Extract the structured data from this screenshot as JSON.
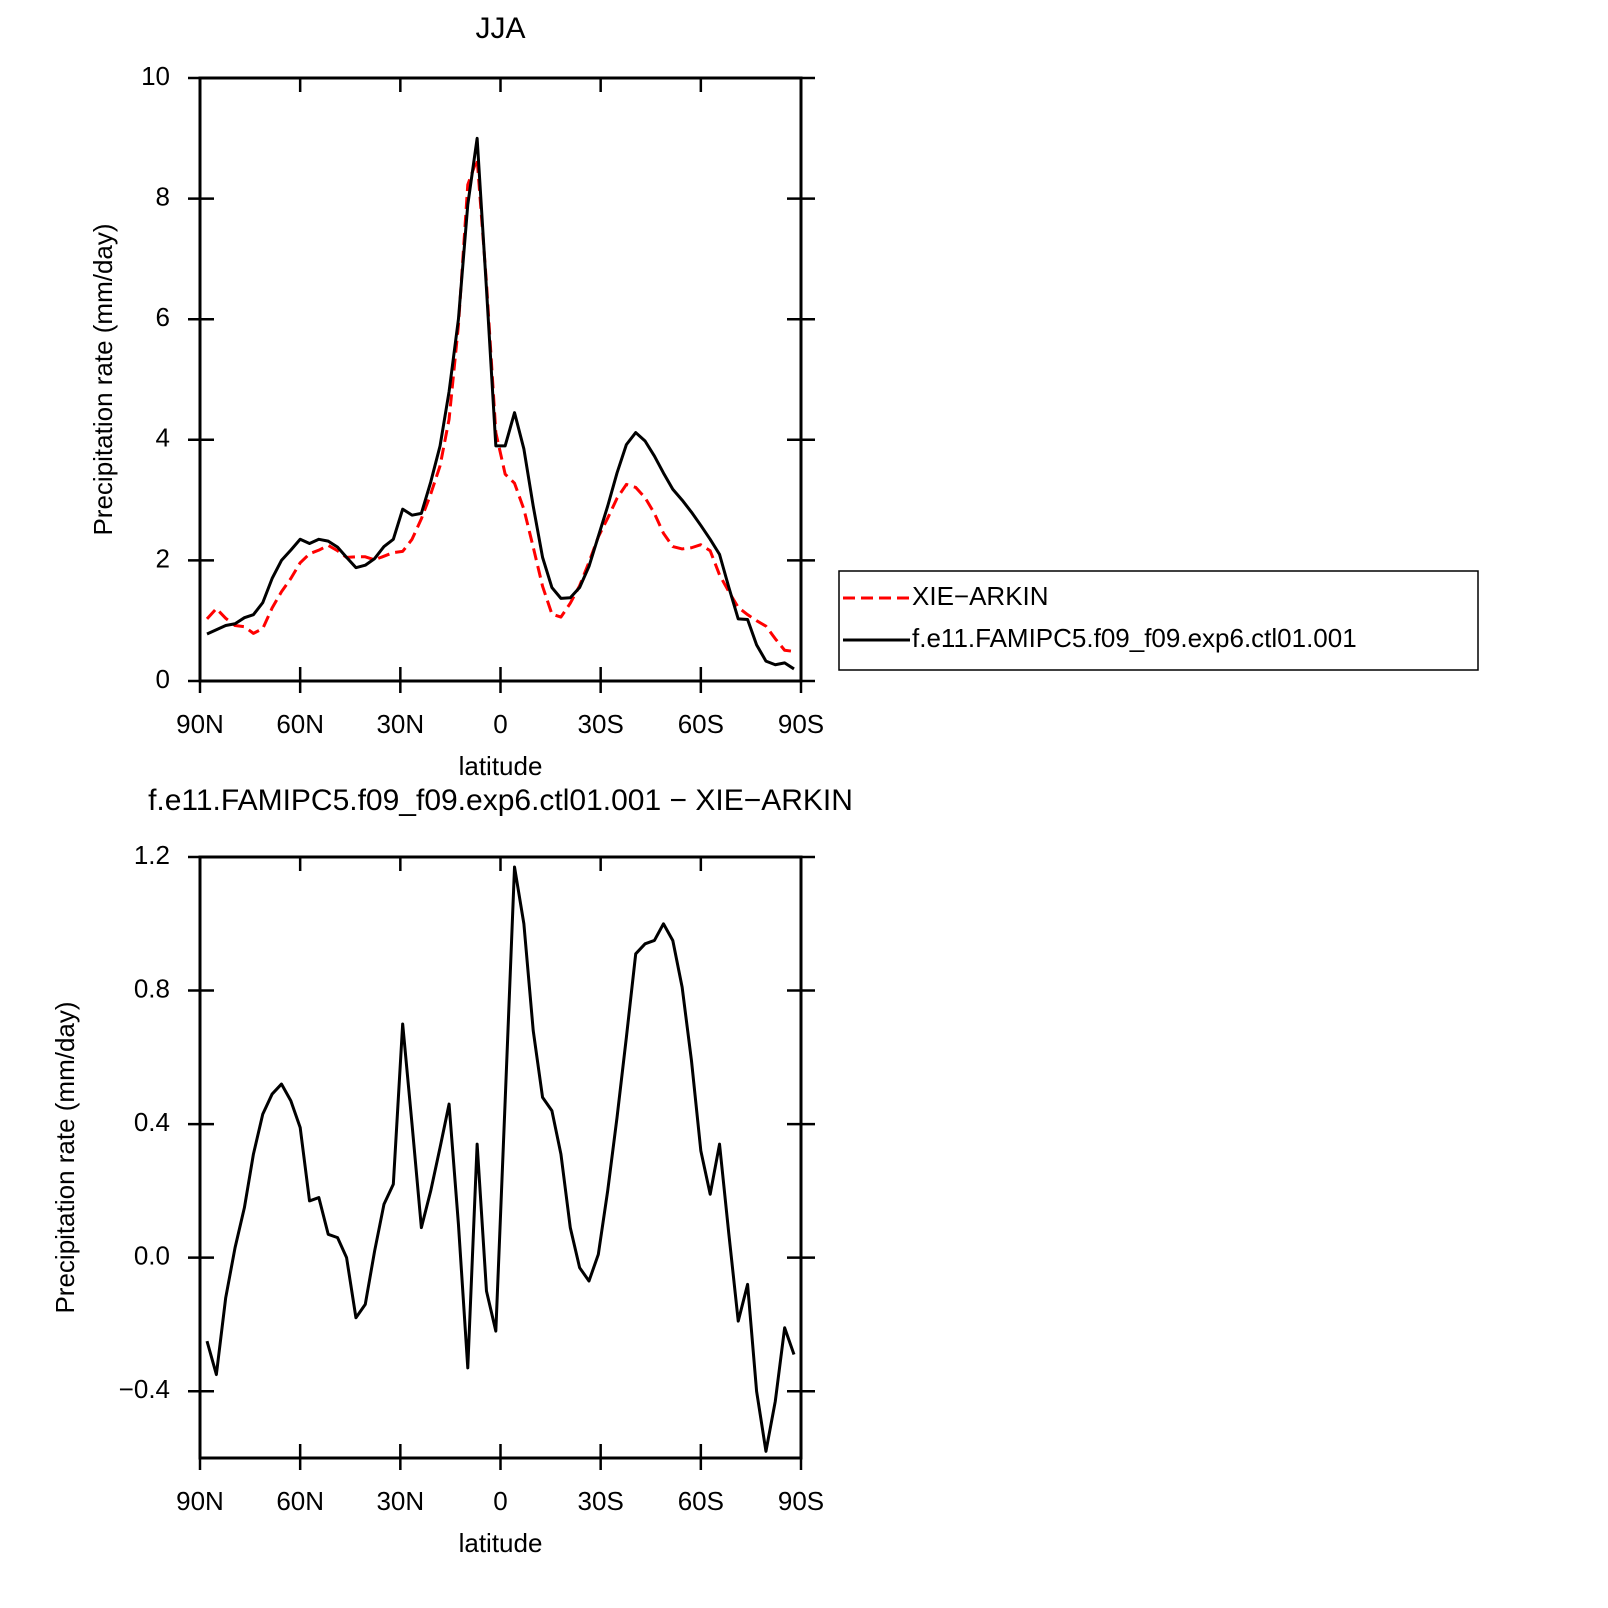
{
  "chart_data": [
    {
      "type": "line",
      "title": "JJA",
      "x_label": "latitude",
      "y_label": "Precipitation rate (mm/day)",
      "x": [
        87.9,
        85.1,
        82.3,
        79.5,
        76.7,
        74.0,
        71.2,
        68.4,
        65.6,
        62.8,
        60.0,
        57.2,
        54.4,
        51.6,
        48.8,
        46.1,
        43.3,
        40.5,
        37.7,
        34.9,
        32.1,
        29.3,
        26.5,
        23.7,
        20.9,
        18.1,
        15.4,
        12.6,
        9.8,
        7.0,
        4.2,
        1.4,
        -1.4,
        -4.2,
        -7.0,
        -9.8,
        -12.6,
        -15.4,
        -18.1,
        -20.9,
        -23.7,
        -26.5,
        -29.3,
        -32.1,
        -34.9,
        -37.7,
        -40.5,
        -43.3,
        -46.1,
        -48.8,
        -51.6,
        -54.4,
        -57.2,
        -60.0,
        -62.8,
        -65.6,
        -68.4,
        -71.2,
        -74.0,
        -76.7,
        -79.5,
        -82.3,
        -85.1,
        -87.9
      ],
      "series": [
        {
          "name": "XIE−ARKIN",
          "color": "#ff0000",
          "line_style": "dashed",
          "values": [
            1.03,
            1.2,
            1.04,
            0.92,
            0.9,
            0.79,
            0.87,
            1.21,
            1.48,
            1.7,
            1.96,
            2.11,
            2.17,
            2.25,
            2.16,
            2.05,
            2.06,
            2.06,
            2.01,
            2.07,
            2.13,
            2.15,
            2.35,
            2.69,
            3.1,
            3.57,
            4.34,
            5.9,
            8.23,
            8.66,
            6.6,
            4.12,
            3.43,
            3.28,
            2.85,
            2.22,
            1.57,
            1.11,
            1.06,
            1.29,
            1.58,
            1.97,
            2.39,
            2.7,
            3.03,
            3.26,
            3.21,
            3.04,
            2.78,
            2.45,
            2.23,
            2.19,
            2.21,
            2.26,
            2.16,
            1.76,
            1.48,
            1.22,
            1.1,
            1.0,
            0.91,
            0.7,
            0.51,
            0.49
          ]
        },
        {
          "name": "f.e11.FAMIPC5.f09_f09.exp6.ctl01.001",
          "color": "#000000",
          "line_style": "solid",
          "values": [
            0.78,
            0.85,
            0.92,
            0.95,
            1.05,
            1.1,
            1.3,
            1.7,
            2.0,
            2.17,
            2.35,
            2.28,
            2.35,
            2.32,
            2.22,
            2.05,
            1.88,
            1.92,
            2.03,
            2.23,
            2.35,
            2.85,
            2.75,
            2.78,
            3.3,
            3.9,
            4.8,
            6.0,
            7.9,
            9.0,
            6.5,
            3.9,
            3.9,
            4.45,
            3.85,
            2.9,
            2.05,
            1.55,
            1.37,
            1.38,
            1.55,
            1.9,
            2.4,
            2.9,
            3.45,
            3.92,
            4.12,
            3.98,
            3.73,
            3.45,
            3.18,
            3.0,
            2.8,
            2.58,
            2.35,
            2.1,
            1.55,
            1.03,
            1.02,
            0.6,
            0.33,
            0.27,
            0.3,
            0.2
          ]
        }
      ],
      "xlim": [
        90,
        -90
      ],
      "ylim": [
        0,
        10
      ],
      "xticks": [
        {
          "value": 90,
          "label": "90N"
        },
        {
          "value": 60,
          "label": "60N"
        },
        {
          "value": 30,
          "label": "30N"
        },
        0,
        {
          "value": -30,
          "label": "30S"
        },
        {
          "value": -60,
          "label": "60S"
        },
        {
          "value": -90,
          "label": "90S"
        }
      ],
      "yticks": [
        0,
        2,
        4,
        6,
        8,
        10
      ],
      "legend": "right"
    },
    {
      "type": "line",
      "title": "f.e11.FAMIPC5.f09_f09.exp6.ctl01.001 − XIE−ARKIN",
      "x_label": "latitude",
      "y_label": "Precipitation rate (mm/day)",
      "x": [
        87.9,
        85.1,
        82.3,
        79.5,
        76.7,
        74.0,
        71.2,
        68.4,
        65.6,
        62.8,
        60.0,
        57.2,
        54.4,
        51.6,
        48.8,
        46.1,
        43.3,
        40.5,
        37.7,
        34.9,
        32.1,
        29.3,
        26.5,
        23.7,
        20.9,
        18.1,
        15.4,
        12.6,
        9.8,
        7.0,
        4.2,
        1.4,
        -1.4,
        -4.2,
        -7.0,
        -9.8,
        -12.6,
        -15.4,
        -18.1,
        -20.9,
        -23.7,
        -26.5,
        -29.3,
        -32.1,
        -34.9,
        -37.7,
        -40.5,
        -43.3,
        -46.1,
        -48.8,
        -51.6,
        -54.4,
        -57.2,
        -60.0,
        -62.8,
        -65.6,
        -68.4,
        -71.2,
        -74.0,
        -76.7,
        -79.5,
        -82.3,
        -85.1,
        -87.9
      ],
      "series": [
        {
          "color": "#000000",
          "line_style": "solid",
          "values": [
            -0.25,
            -0.35,
            -0.12,
            0.03,
            0.15,
            0.31,
            0.43,
            0.49,
            0.52,
            0.47,
            0.39,
            0.17,
            0.18,
            0.07,
            0.06,
            0.0,
            -0.18,
            -0.14,
            0.02,
            0.16,
            0.22,
            0.7,
            0.4,
            0.09,
            0.2,
            0.33,
            0.46,
            0.1,
            -0.33,
            0.34,
            -0.1,
            -0.22,
            0.47,
            1.17,
            1.0,
            0.68,
            0.48,
            0.44,
            0.31,
            0.09,
            -0.03,
            -0.07,
            0.01,
            0.2,
            0.42,
            0.66,
            0.91,
            0.94,
            0.95,
            1.0,
            0.95,
            0.81,
            0.59,
            0.32,
            0.19,
            0.34,
            0.07,
            -0.19,
            -0.08,
            -0.4,
            -0.58,
            -0.43,
            -0.21,
            -0.29
          ]
        }
      ],
      "xlim": [
        90,
        -90
      ],
      "ylim": [
        -0.6,
        1.2
      ],
      "xticks": [
        {
          "value": 90,
          "label": "90N"
        },
        {
          "value": 60,
          "label": "60N"
        },
        {
          "value": 30,
          "label": "30N"
        },
        0,
        {
          "value": -30,
          "label": "30S"
        },
        {
          "value": -60,
          "label": "60S"
        },
        {
          "value": -90,
          "label": "90S"
        }
      ],
      "yticks": [
        {
          "value": -0.4,
          "label": "−0.4"
        },
        {
          "value": 0,
          "label": "0.0"
        },
        0.4,
        0.8,
        1.2
      ]
    }
  ]
}
